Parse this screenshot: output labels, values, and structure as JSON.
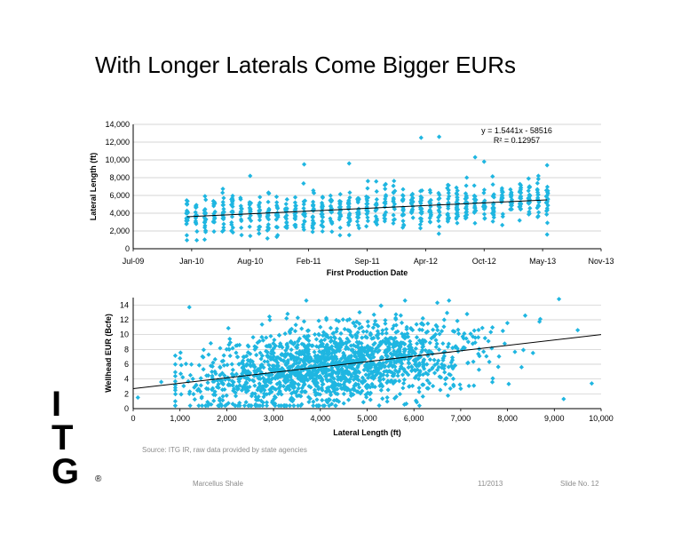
{
  "title": "With Longer Laterals Come Bigger EURs",
  "colors": {
    "points": "#1fb6e1",
    "trend": "#000000",
    "grid": "#c8c8c8"
  },
  "chart_data": [
    {
      "type": "scatter",
      "xlabel": "First Production Date",
      "ylabel": "Lateral Length (ft)",
      "x_ticks": [
        "Jul-09",
        "Jan-10",
        "Aug-10",
        "Feb-11",
        "Sep-11",
        "Apr-12",
        "Oct-12",
        "May-13",
        "Nov-13"
      ],
      "x_range": [
        "2009-07",
        "2013-11"
      ],
      "y_ticks": [
        "0",
        "2,000",
        "4,000",
        "6,000",
        "8,000",
        "10,000",
        "12,000",
        "14,000"
      ],
      "ylim": [
        0,
        14000
      ],
      "grid": "horizontal",
      "trendline": {
        "equation": "y = 1.5441x - 58516",
        "r2": "R² = 0.12957",
        "start": {
          "x": "2010-01",
          "y": 3600
        },
        "end": {
          "x": "2013-05",
          "y": 5500
        }
      },
      "series": [
        {
          "points": [
            [
              "2010-01",
              3500
            ],
            [
              "2010-01",
              4200
            ],
            [
              "2010-02",
              2800
            ],
            [
              "2010-03",
              3900
            ],
            [
              "2010-05",
              4100
            ],
            [
              "2010-06",
              3600
            ],
            [
              "2010-08",
              8200
            ],
            [
              "2010-09",
              4300
            ],
            [
              "2010-11",
              4700
            ],
            [
              "2011-01",
              5200
            ],
            [
              "2011-02",
              9500
            ],
            [
              "2011-03",
              4800
            ],
            [
              "2011-05",
              5300
            ],
            [
              "2011-07",
              9600
            ],
            [
              "2011-09",
              5400
            ],
            [
              "2011-10",
              4900
            ],
            [
              "2012-01",
              5600
            ],
            [
              "2012-03",
              12500
            ],
            [
              "2012-04",
              5100
            ],
            [
              "2012-05",
              12600
            ],
            [
              "2012-07",
              5800
            ],
            [
              "2012-09",
              10300
            ],
            [
              "2012-10",
              9800
            ],
            [
              "2012-11",
              5900
            ],
            [
              "2013-01",
              6200
            ],
            [
              "2013-03",
              5500
            ],
            [
              "2013-05",
              9400
            ],
            [
              "2013-05",
              1600
            ]
          ]
        }
      ]
    },
    {
      "type": "scatter",
      "xlabel": "Lateral Length (ft)",
      "ylabel": "Wellhead EUR (Bcfe)",
      "x_ticks": [
        "0",
        "1,000",
        "2,000",
        "3,000",
        "4,000",
        "5,000",
        "6,000",
        "7,000",
        "8,000",
        "9,000",
        "10,000"
      ],
      "xlim": [
        0,
        10000
      ],
      "y_ticks": [
        "0",
        "2",
        "4",
        "6",
        "8",
        "10",
        "12",
        "14"
      ],
      "ylim": [
        0,
        15
      ],
      "grid": "horizontal",
      "trendline": {
        "start": {
          "x": 0,
          "y": 2.7
        },
        "end": {
          "x": 10000,
          "y": 10.0
        }
      },
      "series": [
        {
          "points": [
            [
              100,
              1.5
            ],
            [
              600,
              3.6
            ],
            [
              1000,
              6.8
            ],
            [
              1200,
              13.7
            ],
            [
              1900,
              6.4
            ],
            [
              2400,
              2.6
            ],
            [
              2900,
              4.4
            ],
            [
              3300,
              12.8
            ],
            [
              3700,
              14.6
            ],
            [
              4200,
              1.2
            ],
            [
              4500,
              6.3
            ],
            [
              5000,
              3.2
            ],
            [
              5300,
              13.9
            ],
            [
              5800,
              8.7
            ],
            [
              6100,
              4.0
            ],
            [
              6500,
              14.3
            ],
            [
              7000,
              2.7
            ],
            [
              7400,
              7.1
            ],
            [
              7900,
              10.5
            ],
            [
              8300,
              5.6
            ],
            [
              8700,
              12.1
            ],
            [
              9100,
              14.8
            ],
            [
              9200,
              1.3
            ],
            [
              9500,
              10.6
            ],
            [
              9800,
              3.4
            ]
          ]
        }
      ]
    }
  ],
  "footer": {
    "source": "Source: ITG IR, raw data provided by state agencies",
    "topic": "Marcellus Shale",
    "date": "11/2013",
    "slide": "Slide No. 12"
  },
  "logo": {
    "letters": [
      "I",
      "T",
      "G"
    ],
    "mark": "®"
  }
}
